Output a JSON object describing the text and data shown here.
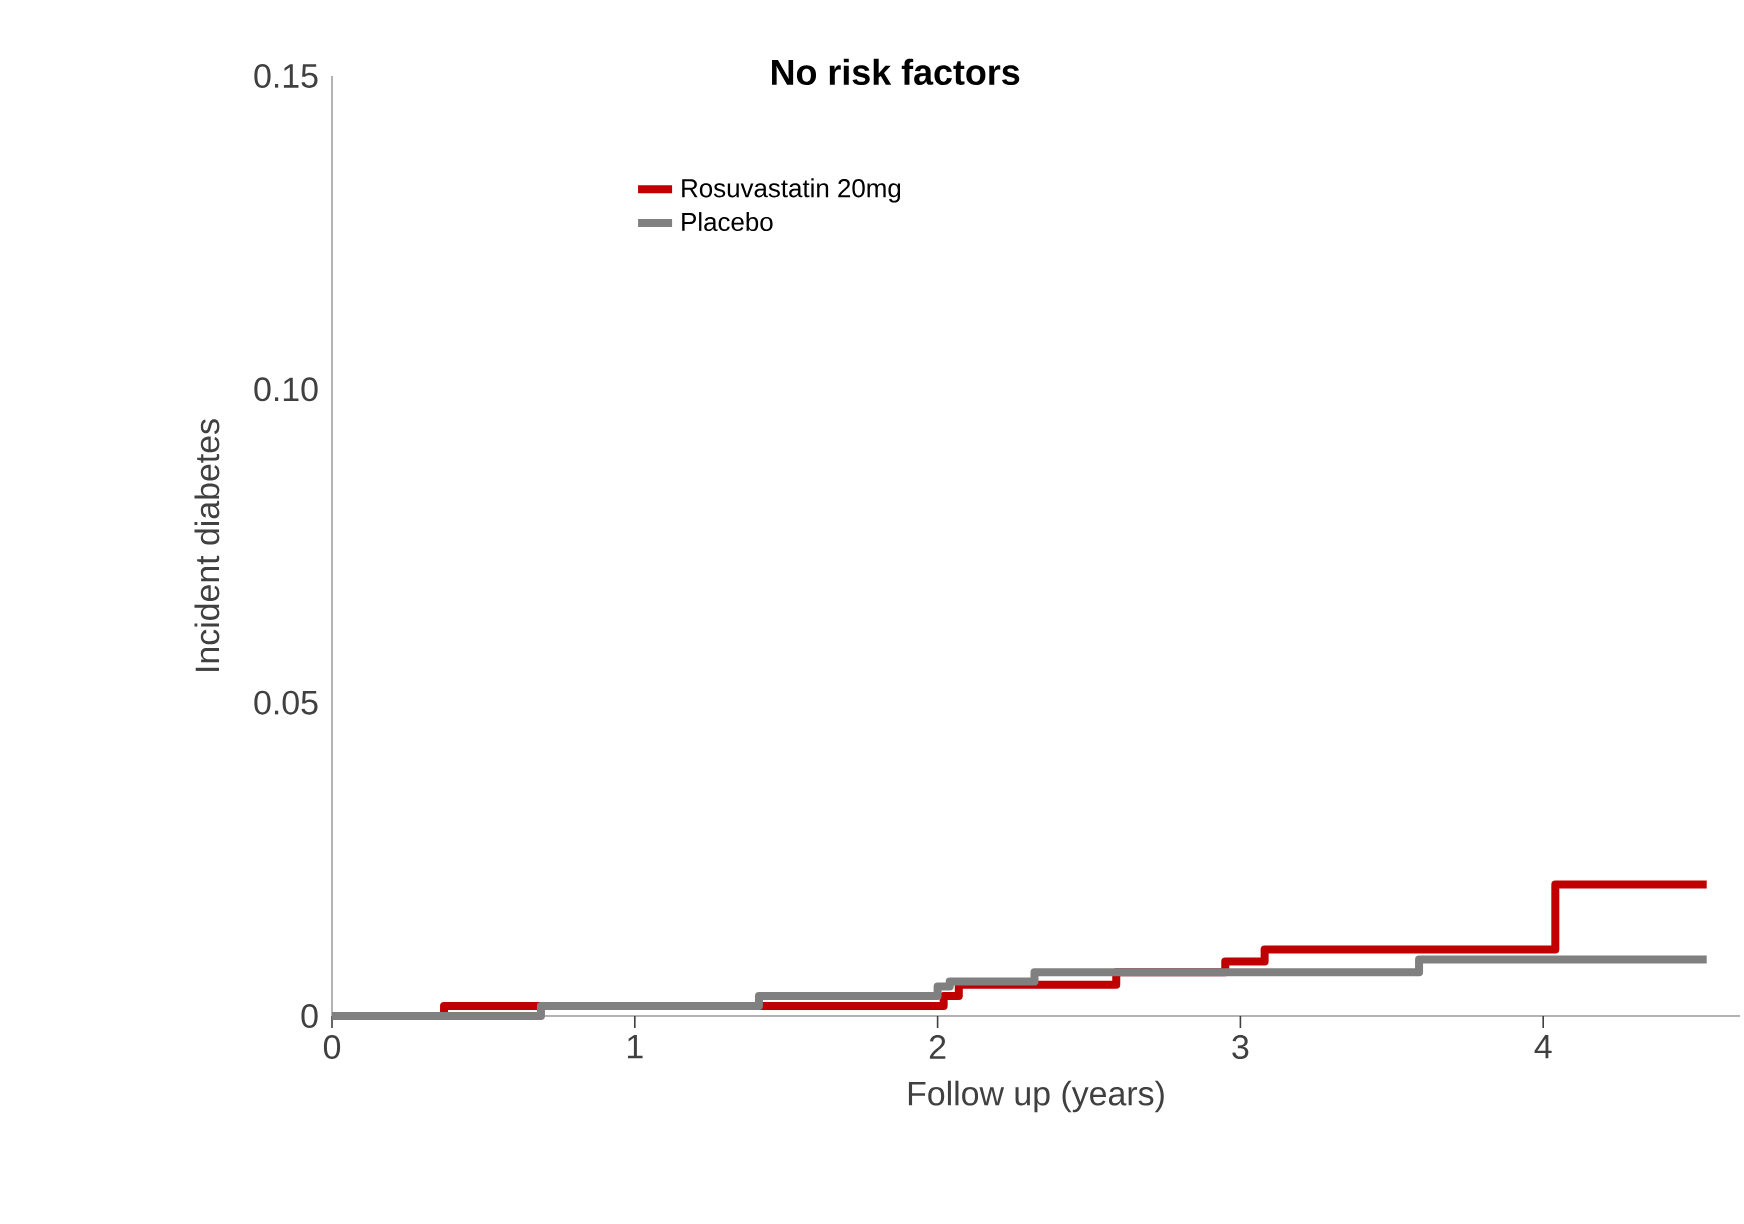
{
  "chart_data": {
    "type": "step",
    "title": "No risk factors",
    "xlabel": "Follow up (years)",
    "ylabel": "Incident diabetes",
    "xlim": [
      0,
      4.65
    ],
    "ylim": [
      0,
      0.15
    ],
    "xticks": [
      0,
      1,
      2,
      3,
      4
    ],
    "yticks": [
      0,
      0.05,
      {
        "value": 0.1,
        "label": "0.10"
      },
      0.15
    ],
    "legend": "top",
    "grid": false,
    "series": [
      {
        "name": "Rosuvastatin 20mg",
        "color": "#c00000",
        "x": [
          0,
          0.37,
          2.02,
          2.07,
          2.59,
          2.95,
          3.08,
          4.04,
          4.54
        ],
        "values": [
          0,
          0.0016,
          0.0032,
          0.005,
          0.007,
          0.0087,
          0.0106,
          0.021,
          0.021
        ]
      },
      {
        "name": "Placebo",
        "color": "#808080",
        "x": [
          0,
          0.69,
          1.41,
          2.0,
          2.04,
          2.32,
          3.59,
          4.54
        ],
        "values": [
          0,
          0.0016,
          0.0032,
          0.0047,
          0.0055,
          0.007,
          0.009,
          0.009
        ]
      }
    ]
  }
}
